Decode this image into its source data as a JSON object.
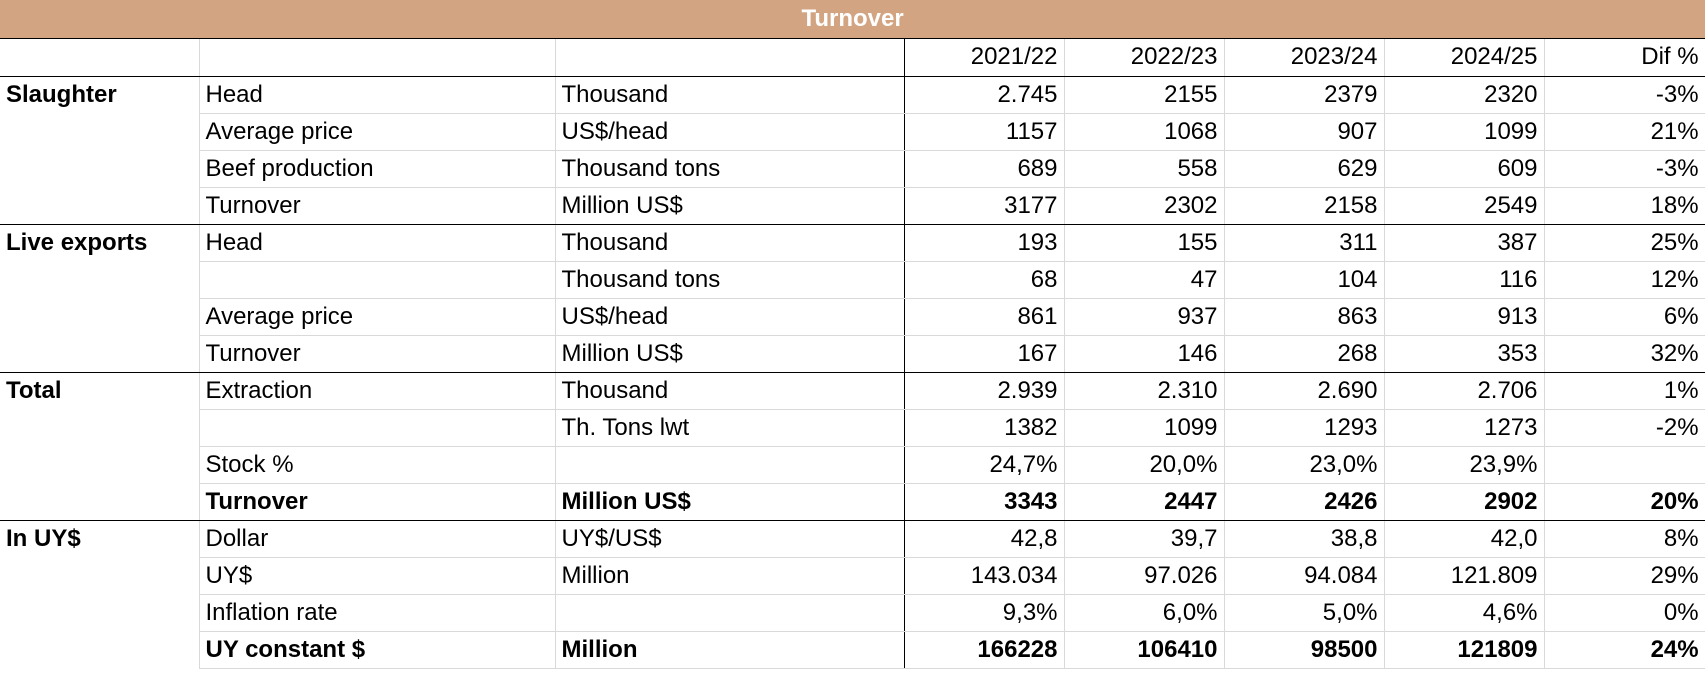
{
  "title": "Turnover",
  "columns": [
    "2021/22",
    "2022/23",
    "2023/24",
    "2024/25",
    "Dif %"
  ],
  "rows": [
    {
      "group": "Slaughter",
      "item": "Head",
      "unit": "Thousand",
      "values": [
        "2.745",
        "2155",
        "2379",
        "2320",
        "-3%"
      ],
      "bold": false
    },
    {
      "group": "",
      "item": "Average price",
      "unit": "US$/head",
      "values": [
        "1157",
        "1068",
        "907",
        "1099",
        "21%"
      ],
      "bold": false
    },
    {
      "group": "",
      "item": "Beef production",
      "unit": "Thousand tons",
      "values": [
        "689",
        "558",
        "629",
        "609",
        "-3%"
      ],
      "bold": false
    },
    {
      "group": "",
      "item": "Turnover",
      "unit": "Million US$",
      "values": [
        "3177",
        "2302",
        "2158",
        "2549",
        "18%"
      ],
      "bold": false
    },
    {
      "group": "Live exports",
      "item": "Head",
      "unit": "Thousand",
      "values": [
        "193",
        "155",
        "311",
        "387",
        "25%"
      ],
      "bold": false
    },
    {
      "group": "",
      "item": "",
      "unit": "Thousand tons",
      "values": [
        "68",
        "47",
        "104",
        "116",
        "12%"
      ],
      "bold": false
    },
    {
      "group": "",
      "item": "Average price",
      "unit": "US$/head",
      "values": [
        "861",
        "937",
        "863",
        "913",
        "6%"
      ],
      "bold": false
    },
    {
      "group": "",
      "item": "Turnover",
      "unit": "Million US$",
      "values": [
        "167",
        "146",
        "268",
        "353",
        "32%"
      ],
      "bold": false
    },
    {
      "group": "Total",
      "item": "Extraction",
      "unit": "Thousand",
      "values": [
        "2.939",
        "2.310",
        "2.690",
        "2.706",
        "1%"
      ],
      "bold": false
    },
    {
      "group": "",
      "item": "",
      "unit": "Th. Tons lwt",
      "values": [
        "1382",
        "1099",
        "1293",
        "1273",
        "-2%"
      ],
      "bold": false
    },
    {
      "group": "",
      "item": "Stock %",
      "unit": "",
      "values": [
        "24,7%",
        "20,0%",
        "23,0%",
        "23,9%",
        ""
      ],
      "bold": false
    },
    {
      "group": "",
      "item": "Turnover",
      "unit": "Million US$",
      "values": [
        "3343",
        "2447",
        "2426",
        "2902",
        "20%"
      ],
      "bold": true
    },
    {
      "group": "In UY$",
      "item": "Dollar",
      "unit": "UY$/US$",
      "values": [
        "42,8",
        "39,7",
        "38,8",
        "42,0",
        "8%"
      ],
      "bold": false
    },
    {
      "group": "",
      "item": "UY$",
      "unit": "Million",
      "values": [
        "143.034",
        "97.026",
        "94.084",
        "121.809",
        "29%"
      ],
      "bold": false
    },
    {
      "group": "",
      "item": "Inflation rate",
      "unit": "",
      "values": [
        "9,3%",
        "6,0%",
        "5,0%",
        "4,6%",
        "0%"
      ],
      "bold": false
    },
    {
      "group": "",
      "item": "UY constant $",
      "unit": "Million",
      "values": [
        "166228",
        "106410",
        "98500",
        "121809",
        "24%"
      ],
      "bold": true
    }
  ]
}
